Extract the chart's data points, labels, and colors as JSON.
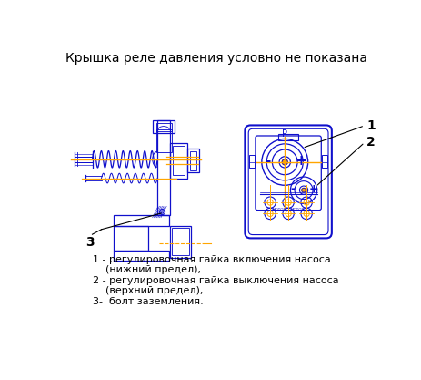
{
  "title": "Крышка реле давления условно не показана",
  "title_fontsize": 10,
  "legend_line1a": "1 - регулировочная гайка включения насоса",
  "legend_line1b": "    (нижний предел),",
  "legend_line2a": "2 - регулировочная гайка выключения насоса",
  "legend_line2b": "    (верхний предел),",
  "legend_line3": "3-  болт заземления.",
  "blue": "#1010CC",
  "orange": "#FFA500",
  "bg_color": "#FFFFFF",
  "text_color": "#000000",
  "label1": "1",
  "label2": "2",
  "label3": "3"
}
